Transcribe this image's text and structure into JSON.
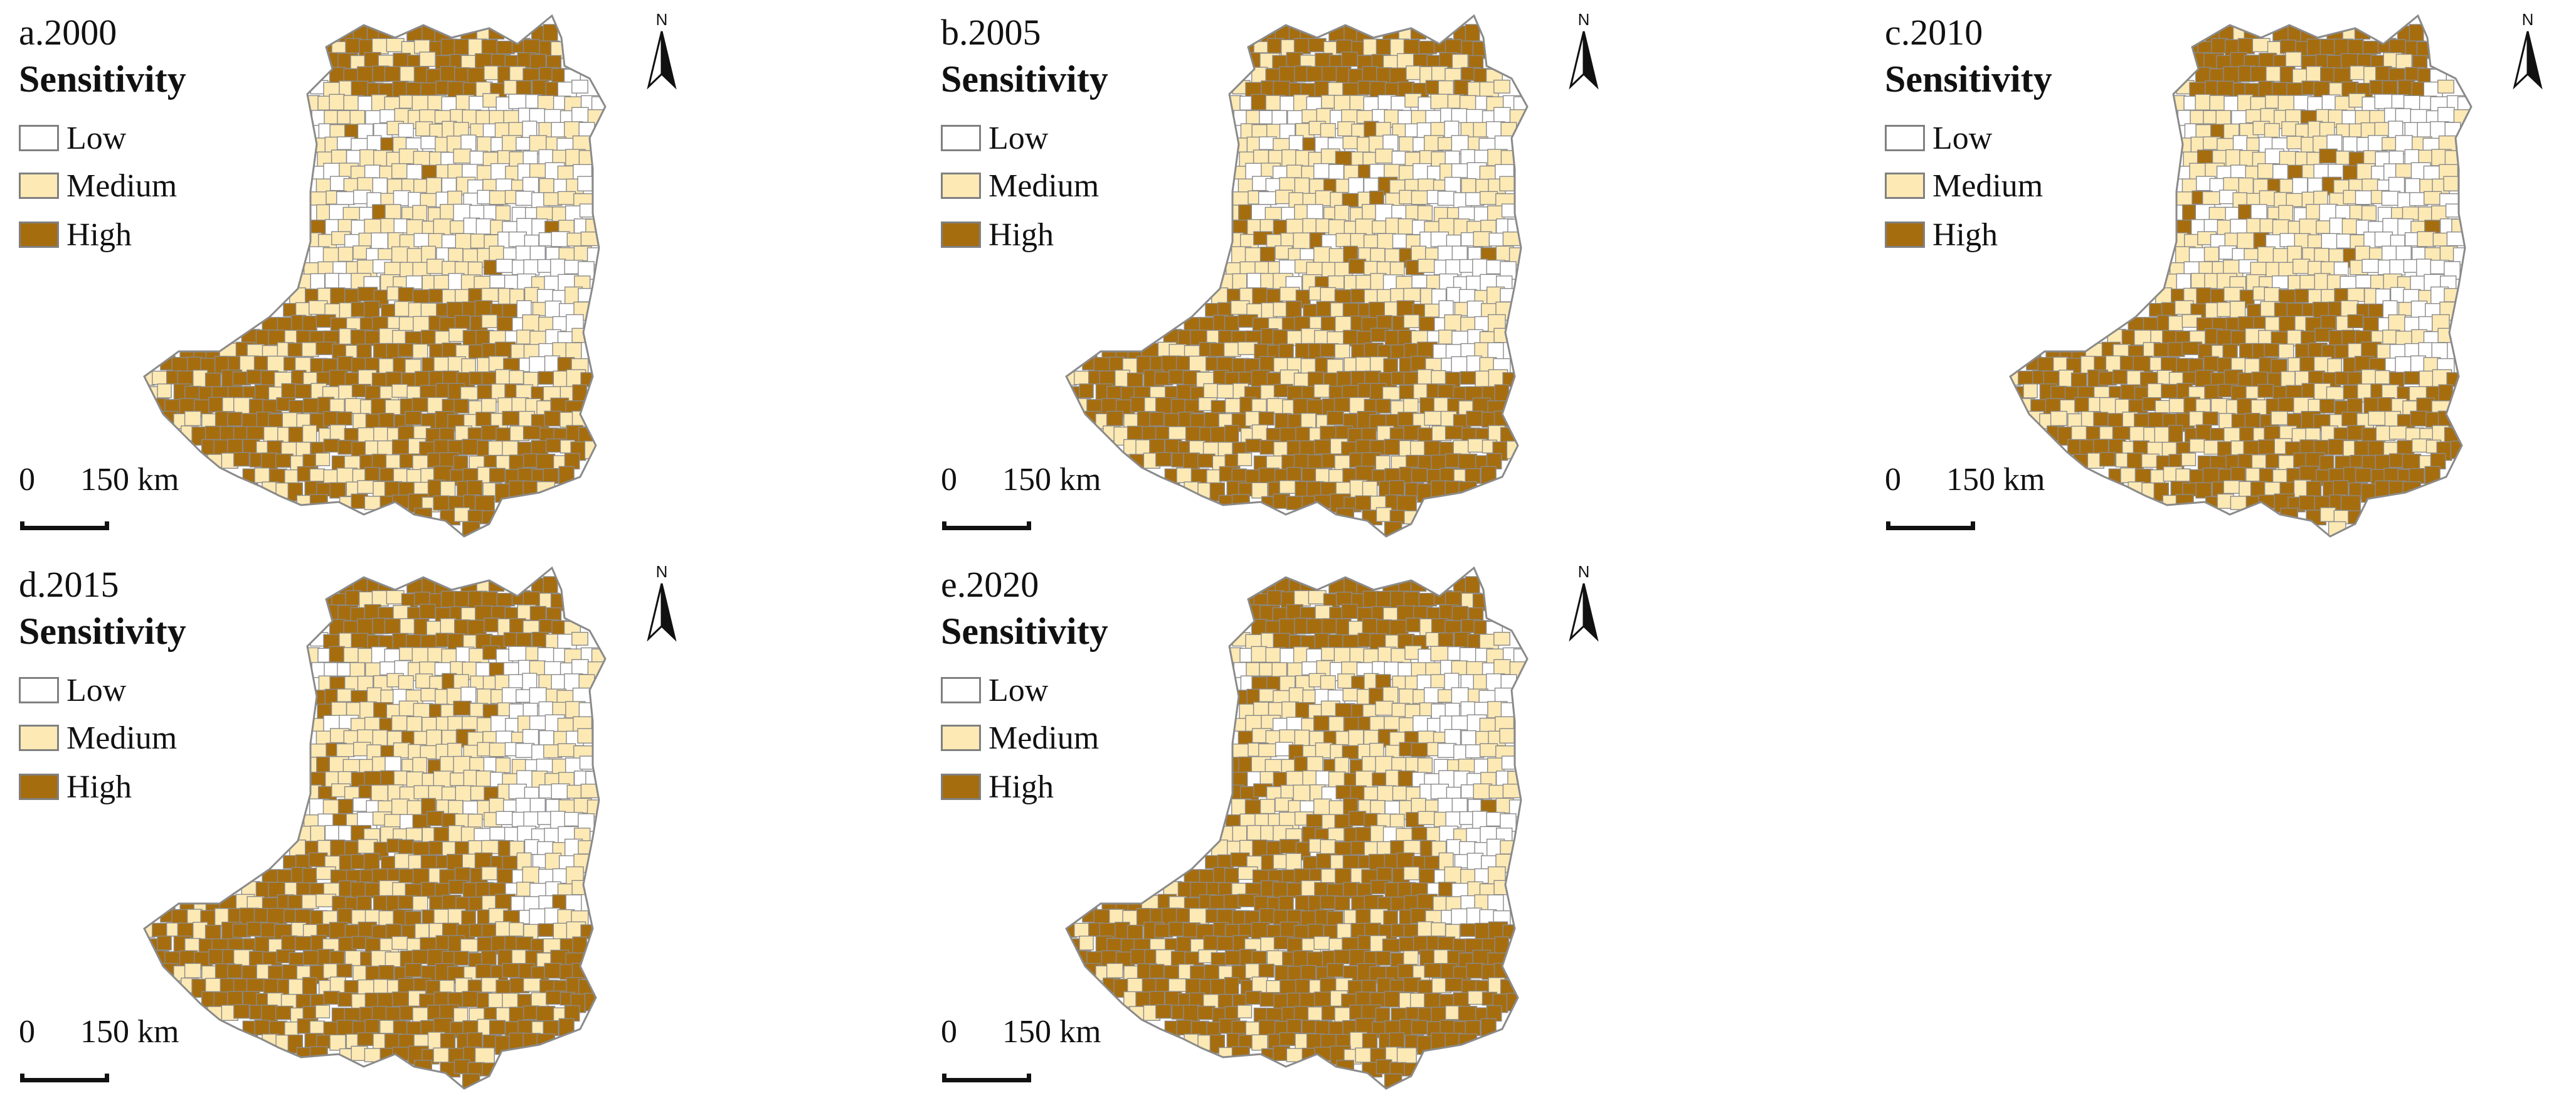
{
  "panels": [
    {
      "title": "a.2000",
      "year": 2000
    },
    {
      "title": "b.2005",
      "year": 2005
    },
    {
      "title": "c.2010",
      "year": 2010
    },
    {
      "title": "d.2015",
      "year": 2015
    },
    {
      "title": "e.2020",
      "year": 2020
    }
  ],
  "legend": {
    "title": "Sensitivity",
    "classes": [
      {
        "label": "Low",
        "color": "#ffffff"
      },
      {
        "label": "Medium",
        "color": "#fde9b4"
      },
      {
        "label": "High",
        "color": "#a66d0f"
      }
    ]
  },
  "scale_bar": {
    "zero": "0",
    "distance": "150 km"
  },
  "north_arrow": {
    "label": "N"
  },
  "colors": {
    "boundary": "#8a8a8a",
    "low": "#ffffff",
    "medium": "#fde9b4",
    "high": "#a66d0f"
  }
}
